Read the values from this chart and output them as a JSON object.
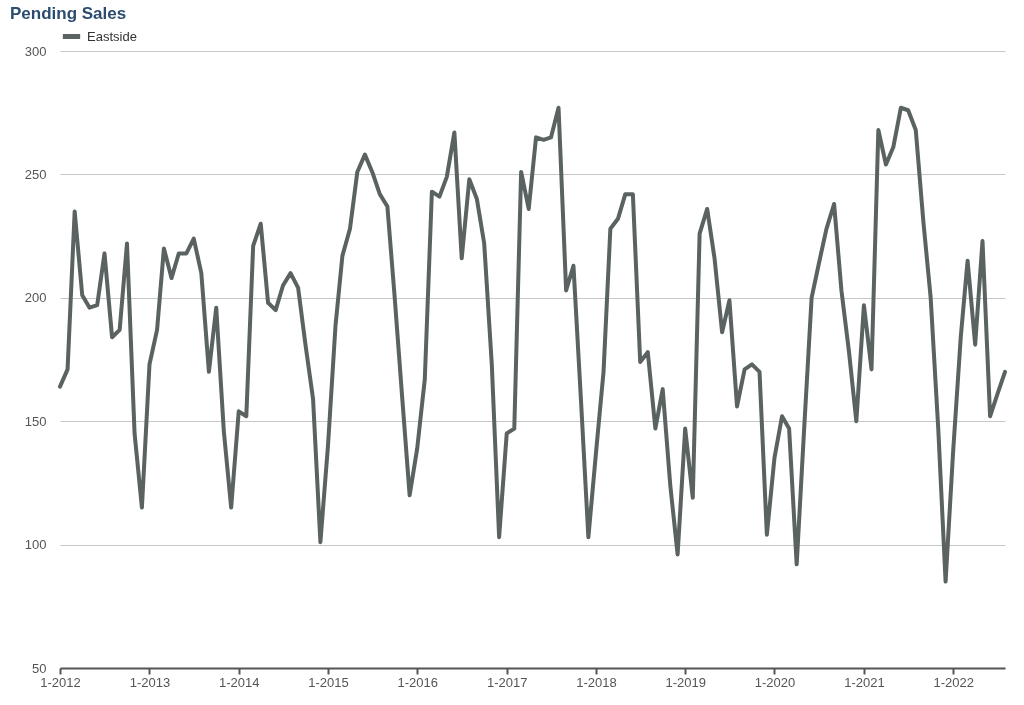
{
  "chart_data": {
    "type": "line",
    "title": "Pending Sales",
    "x": [
      "2012-01",
      "2012-02",
      "2012-03",
      "2012-04",
      "2012-05",
      "2012-06",
      "2012-07",
      "2012-08",
      "2012-09",
      "2012-10",
      "2012-11",
      "2012-12",
      "2013-01",
      "2013-02",
      "2013-03",
      "2013-04",
      "2013-05",
      "2013-06",
      "2013-07",
      "2013-08",
      "2013-09",
      "2013-10",
      "2013-11",
      "2013-12",
      "2014-01",
      "2014-02",
      "2014-03",
      "2014-04",
      "2014-05",
      "2014-06",
      "2014-07",
      "2014-08",
      "2014-09",
      "2014-10",
      "2014-11",
      "2014-12",
      "2015-01",
      "2015-02",
      "2015-03",
      "2015-04",
      "2015-05",
      "2015-06",
      "2015-07",
      "2015-08",
      "2015-09",
      "2015-10",
      "2015-11",
      "2015-12",
      "2016-01",
      "2016-02",
      "2016-03",
      "2016-04",
      "2016-05",
      "2016-06",
      "2016-07",
      "2016-08",
      "2016-09",
      "2016-10",
      "2016-11",
      "2016-12",
      "2017-01",
      "2017-02",
      "2017-03",
      "2017-04",
      "2017-05",
      "2017-06",
      "2017-07",
      "2017-08",
      "2017-09",
      "2017-10",
      "2017-11",
      "2017-12",
      "2018-01",
      "2018-02",
      "2018-03",
      "2018-04",
      "2018-05",
      "2018-06",
      "2018-07",
      "2018-08",
      "2018-09",
      "2018-10",
      "2018-11",
      "2018-12",
      "2019-01",
      "2019-02",
      "2019-03",
      "2019-04",
      "2019-05",
      "2019-06",
      "2019-07",
      "2019-08",
      "2019-09",
      "2019-10",
      "2019-11",
      "2019-12",
      "2020-01",
      "2020-02",
      "2020-03",
      "2020-04",
      "2020-05",
      "2020-06",
      "2020-07",
      "2020-08",
      "2020-09",
      "2020-10",
      "2020-11",
      "2020-12",
      "2021-01",
      "2021-02",
      "2021-03",
      "2021-04",
      "2021-05",
      "2021-06",
      "2021-07",
      "2021-08",
      "2021-09",
      "2021-10",
      "2021-11",
      "2021-12",
      "2022-01",
      "2022-02",
      "2022-03",
      "2022-04",
      "2022-05",
      "2022-06",
      "2022-07",
      "2022-08"
    ],
    "series": [
      {
        "name": "Eastside",
        "color": "#5a6262",
        "values": [
          164,
          171,
          235,
          201,
          196,
          197,
          218,
          184,
          187,
          222,
          145,
          115,
          173,
          187,
          220,
          208,
          218,
          218,
          224,
          210,
          170,
          196,
          146,
          115,
          154,
          152,
          221,
          230,
          198,
          195,
          205,
          210,
          204,
          181,
          159,
          101,
          140,
          189,
          217,
          228,
          251,
          258,
          251,
          242,
          237,
          200,
          159,
          120,
          139,
          167,
          243,
          241,
          249,
          267,
          216,
          248,
          240,
          222,
          173,
          103,
          145,
          147,
          251,
          236,
          265,
          264,
          265,
          277,
          203,
          213,
          158,
          103,
          137,
          170,
          228,
          232,
          242,
          242,
          174,
          178,
          147,
          163,
          124,
          96,
          147,
          119,
          226,
          236,
          216,
          186,
          199,
          156,
          171,
          173,
          170,
          104,
          135,
          152,
          147,
          92,
          146,
          200,
          214,
          228,
          238,
          203,
          178,
          150,
          197,
          171,
          268,
          254,
          261,
          277,
          276,
          268,
          231,
          200,
          147,
          85,
          138,
          184,
          215,
          181,
          223,
          152,
          161,
          170
        ]
      }
    ],
    "xlim": [
      "2012-01",
      "2022-08"
    ],
    "xticks": [
      {
        "value": "2012-01",
        "label": "1-2012"
      },
      {
        "value": "2013-01",
        "label": "1-2013"
      },
      {
        "value": "2014-01",
        "label": "1-2014"
      },
      {
        "value": "2015-01",
        "label": "1-2015"
      },
      {
        "value": "2016-01",
        "label": "1-2016"
      },
      {
        "value": "2017-01",
        "label": "1-2017"
      },
      {
        "value": "2018-01",
        "label": "1-2018"
      },
      {
        "value": "2019-01",
        "label": "1-2019"
      },
      {
        "value": "2020-01",
        "label": "1-2020"
      },
      {
        "value": "2021-01",
        "label": "1-2021"
      },
      {
        "value": "2022-01",
        "label": "1-2022"
      }
    ],
    "ylim": [
      50,
      300
    ],
    "yticks": [
      50,
      100,
      150,
      200,
      250,
      300
    ],
    "grid": "y",
    "legend": "top"
  }
}
